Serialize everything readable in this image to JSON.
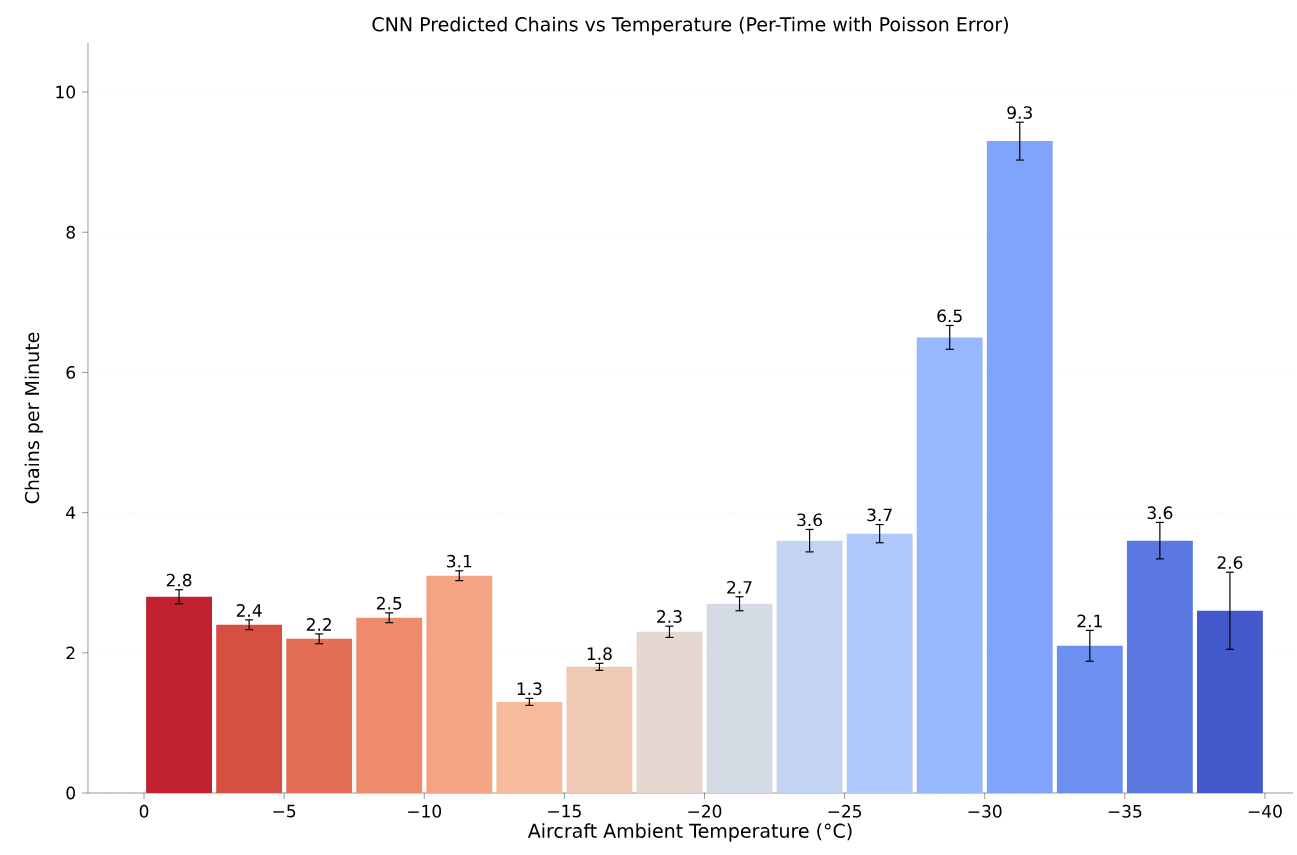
{
  "chart_data": {
    "type": "bar",
    "title": "CNN Predicted Chains vs Temperature (Per-Time with Poisson Error)",
    "xlabel": "Aircraft Ambient Temperature (°C)",
    "ylabel": "Chains per Minute",
    "x": [
      -1.25,
      -3.75,
      -6.25,
      -8.75,
      -11.25,
      -13.75,
      -16.25,
      -18.75,
      -21.25,
      -23.75,
      -26.25,
      -28.75,
      -31.25,
      -33.75,
      -36.25,
      -38.75
    ],
    "values": [
      2.8,
      2.4,
      2.2,
      2.5,
      3.1,
      1.3,
      1.8,
      2.3,
      2.7,
      3.6,
      3.7,
      6.5,
      9.3,
      2.1,
      3.6,
      2.6
    ],
    "errors": [
      0.1,
      0.07,
      0.07,
      0.07,
      0.07,
      0.05,
      0.05,
      0.08,
      0.1,
      0.16,
      0.13,
      0.17,
      0.27,
      0.22,
      0.26,
      0.55
    ],
    "colors": [
      "#bf212f",
      "#d55042",
      "#e46e56",
      "#ee8b6c",
      "#f5a385",
      "#f6bb9c",
      "#f0c9b4",
      "#e4d8d0",
      "#d5dbe4",
      "#c2d4f2",
      "#aec8fb",
      "#97b7ff",
      "#80a4fb",
      "#6c8ff0",
      "#5a78e0",
      "#4358cb"
    ],
    "data_labels": true,
    "value_labels": [
      "2.8",
      "2.4",
      "2.2",
      "2.5",
      "3.1",
      "1.3",
      "1.8",
      "2.3",
      "2.7",
      "3.6",
      "3.7",
      "6.5",
      "9.3",
      "2.1",
      "3.6",
      "2.6"
    ],
    "xlim": [
      2,
      -41
    ],
    "xticks": [
      0,
      {
        "value": -5,
        "label": "−5"
      },
      {
        "value": -10,
        "label": "−10"
      },
      {
        "value": -15,
        "label": "−15"
      },
      {
        "value": -20,
        "label": "−20"
      },
      {
        "value": -25,
        "label": "−25"
      },
      {
        "value": -30,
        "label": "−30"
      },
      {
        "value": -35,
        "label": "−35"
      },
      {
        "value": -40,
        "label": "−40"
      }
    ],
    "ylim": [
      0,
      10.7
    ],
    "yticks": [
      0,
      2,
      4,
      6,
      8,
      10
    ],
    "grid": "y"
  }
}
